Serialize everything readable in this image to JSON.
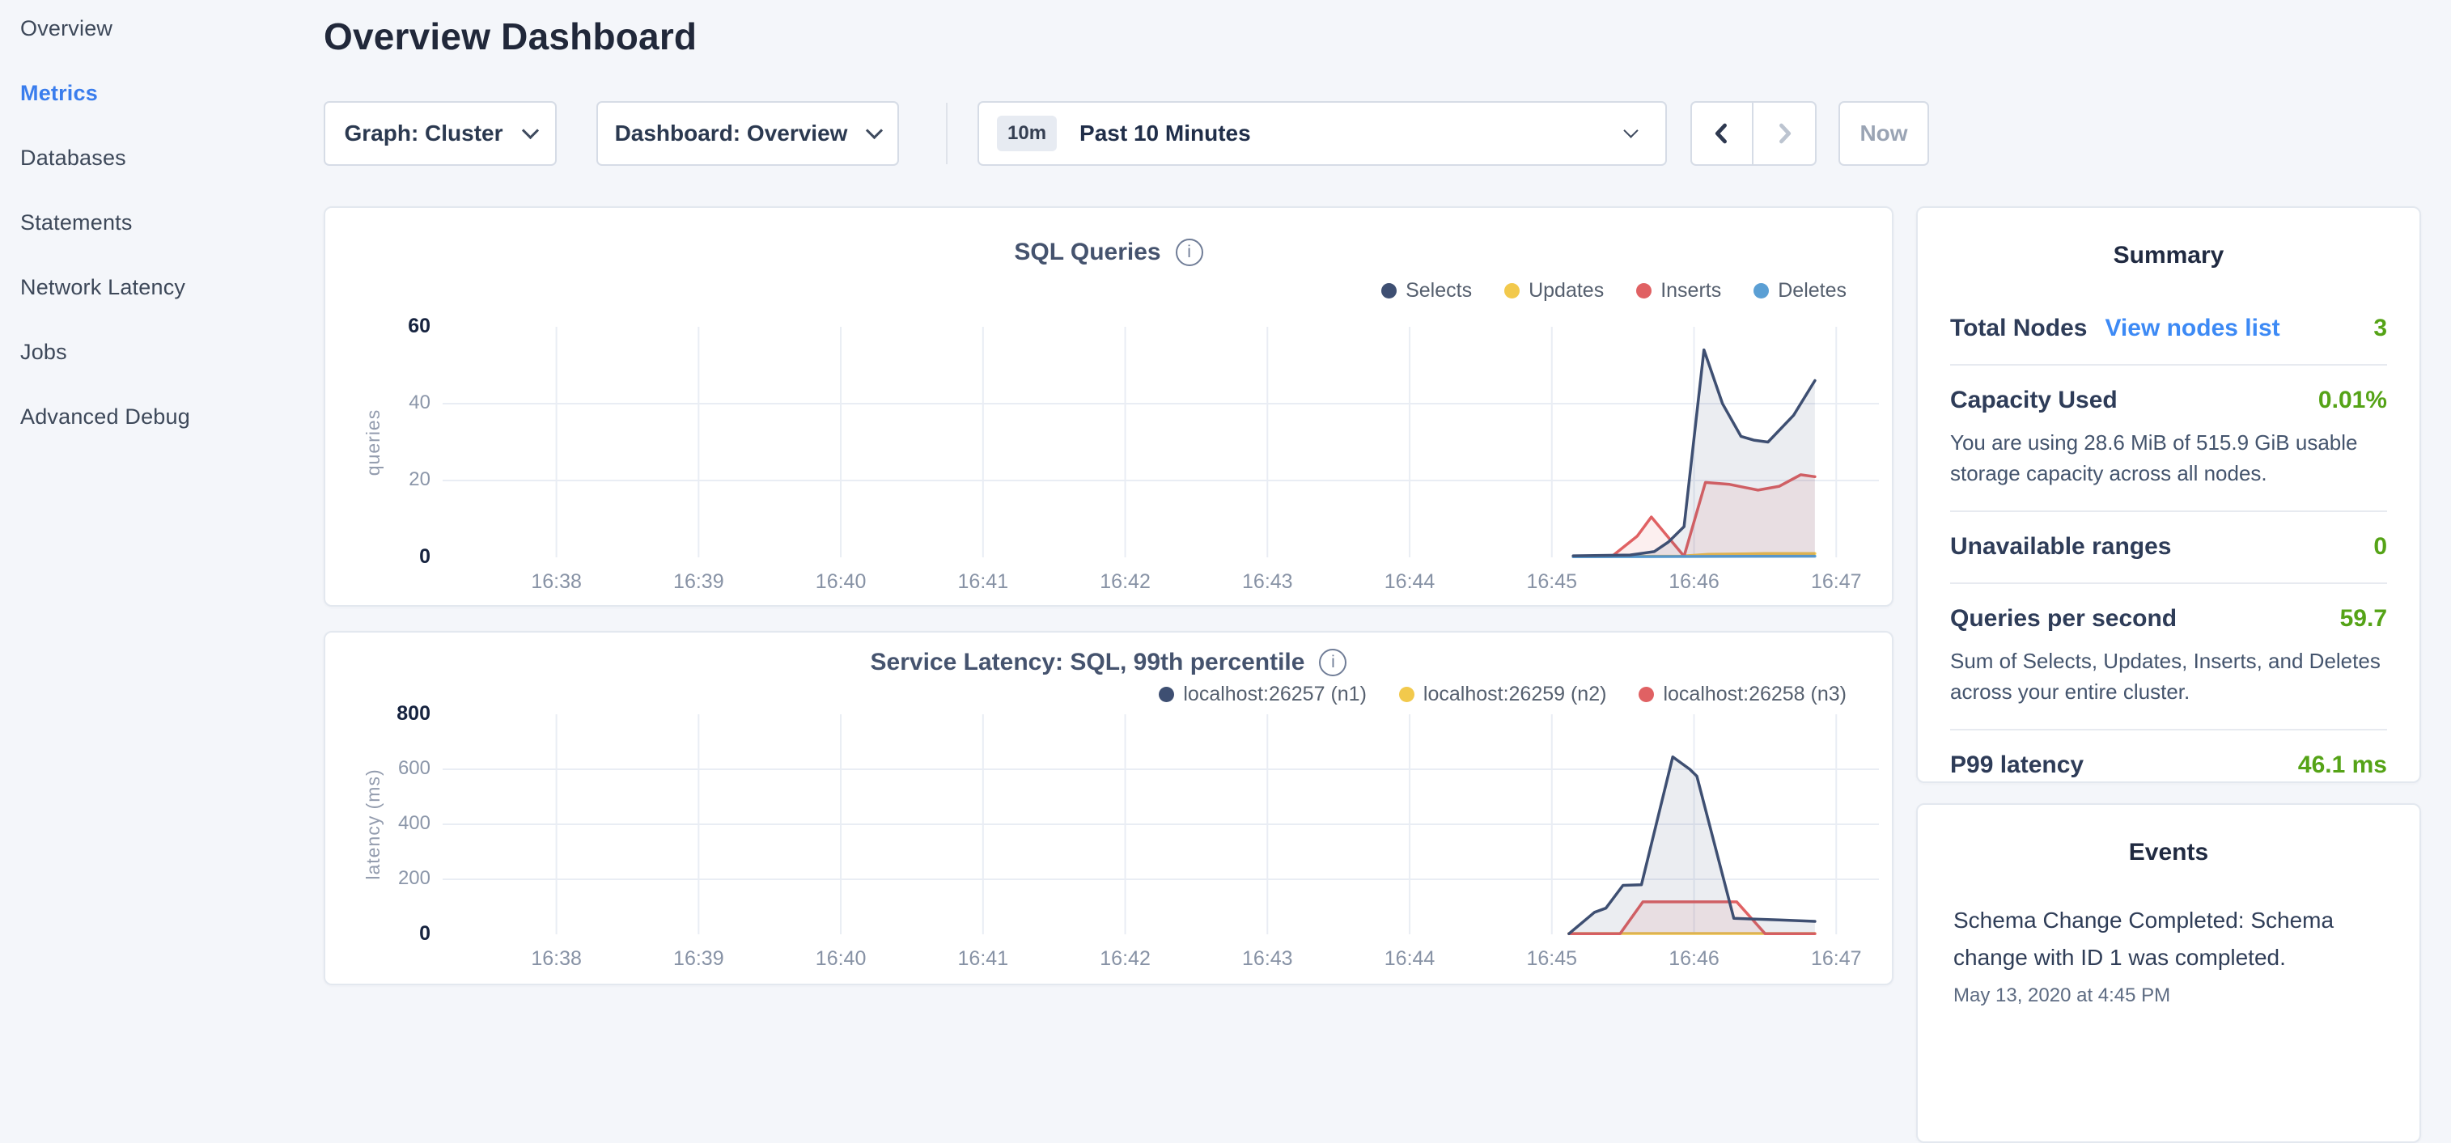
{
  "sidebar": {
    "items": [
      {
        "label": "Overview",
        "active": false
      },
      {
        "label": "Metrics",
        "active": true
      },
      {
        "label": "Databases",
        "active": false
      },
      {
        "label": "Statements",
        "active": false
      },
      {
        "label": "Network Latency",
        "active": false
      },
      {
        "label": "Jobs",
        "active": false
      },
      {
        "label": "Advanced Debug",
        "active": false
      }
    ]
  },
  "header": {
    "title": "Overview Dashboard"
  },
  "controls": {
    "graph_dropdown": "Graph: Cluster",
    "dashboard_dropdown": "Dashboard: Overview",
    "time_badge": "10m",
    "time_label": "Past 10 Minutes",
    "now_label": "Now"
  },
  "summary": {
    "title": "Summary",
    "rows": [
      {
        "label": "Total Nodes",
        "link": "View nodes list",
        "value": "3"
      },
      {
        "label": "Capacity Used",
        "value": "0.01%",
        "description": "You are using 28.6 MiB of 515.9 GiB usable storage capacity across all nodes."
      },
      {
        "label": "Unavailable ranges",
        "value": "0"
      },
      {
        "label": "Queries per second",
        "value": "59.7",
        "description": "Sum of Selects, Updates, Inserts, and Deletes across your entire cluster."
      },
      {
        "label": "P99 latency",
        "value": "46.1 ms"
      }
    ]
  },
  "events": {
    "title": "Events",
    "items": [
      {
        "text": "Schema Change Completed: Schema change with ID 1 was completed.",
        "timestamp": "May 13, 2020 at 4:45 PM"
      }
    ]
  },
  "colors": {
    "accent_blue": "#3a7ded",
    "link_blue": "#3d8af5",
    "value_green": "#55a317",
    "series_navy": "#3e4f72",
    "series_yellow": "#f2c94c",
    "series_red": "#e06163",
    "series_blue": "#5b9fd4",
    "grid": "#e9edf4"
  },
  "chart_data": [
    {
      "type": "line",
      "title": "SQL Queries",
      "ylabel": "queries",
      "ylim": [
        0,
        60
      ],
      "y_ticks": [
        0,
        20,
        40,
        60
      ],
      "x_domain_minutes": [
        37.2,
        47.3
      ],
      "x_ticks": [
        {
          "minute": 38,
          "label": "16:38"
        },
        {
          "minute": 39,
          "label": "16:39"
        },
        {
          "minute": 40,
          "label": "16:40"
        },
        {
          "minute": 41,
          "label": "16:41"
        },
        {
          "minute": 42,
          "label": "16:42"
        },
        {
          "minute": 43,
          "label": "16:43"
        },
        {
          "minute": 44,
          "label": "16:44"
        },
        {
          "minute": 45,
          "label": "16:45"
        },
        {
          "minute": 46,
          "label": "16:46"
        },
        {
          "minute": 47,
          "label": "16:47"
        }
      ],
      "grid": true,
      "legend_position": "top-right",
      "series": [
        {
          "name": "Selects",
          "color": "#3e4f72",
          "fill": "rgba(62,79,114,0.10)",
          "points": [
            [
              45.15,
              0.4
            ],
            [
              45.55,
              0.6
            ],
            [
              45.72,
              1.5
            ],
            [
              45.82,
              4
            ],
            [
              45.93,
              8
            ],
            [
              46.07,
              54
            ],
            [
              46.2,
              40
            ],
            [
              46.33,
              31.5
            ],
            [
              46.42,
              30.5
            ],
            [
              46.52,
              30
            ],
            [
              46.7,
              37
            ],
            [
              46.85,
              46
            ]
          ]
        },
        {
          "name": "Updates",
          "color": "#f2c94c",
          "fill": null,
          "points": [
            [
              45.15,
              0.3
            ],
            [
              45.9,
              0.3
            ],
            [
              46.1,
              0.8
            ],
            [
              46.5,
              1
            ],
            [
              46.85,
              1
            ]
          ]
        },
        {
          "name": "Inserts",
          "color": "#e06163",
          "fill": "rgba(224,97,99,0.10)",
          "points": [
            [
              45.15,
              0.2
            ],
            [
              45.42,
              0.2
            ],
            [
              45.6,
              5.5
            ],
            [
              45.7,
              10.5
            ],
            [
              45.93,
              0.3
            ],
            [
              46.08,
              19.5
            ],
            [
              46.25,
              19
            ],
            [
              46.45,
              17.5
            ],
            [
              46.6,
              18.5
            ],
            [
              46.75,
              21.5
            ],
            [
              46.85,
              21
            ]
          ]
        },
        {
          "name": "Deletes",
          "color": "#5b9fd4",
          "fill": null,
          "points": [
            [
              45.15,
              0.15
            ],
            [
              46.85,
              0.3
            ]
          ]
        }
      ]
    },
    {
      "type": "line",
      "title": "Service Latency: SQL, 99th percentile",
      "ylabel": "latency (ms)",
      "ylim": [
        0,
        800
      ],
      "y_ticks": [
        0,
        200,
        400,
        600,
        800
      ],
      "x_domain_minutes": [
        37.2,
        47.3
      ],
      "x_ticks": [
        {
          "minute": 38,
          "label": "16:38"
        },
        {
          "minute": 39,
          "label": "16:39"
        },
        {
          "minute": 40,
          "label": "16:40"
        },
        {
          "minute": 41,
          "label": "16:41"
        },
        {
          "minute": 42,
          "label": "16:42"
        },
        {
          "minute": 43,
          "label": "16:43"
        },
        {
          "minute": 44,
          "label": "16:44"
        },
        {
          "minute": 45,
          "label": "16:45"
        },
        {
          "minute": 46,
          "label": "16:46"
        },
        {
          "minute": 47,
          "label": "16:47"
        }
      ],
      "grid": true,
      "legend_position": "top-right",
      "series": [
        {
          "name": "localhost:26257 (n1)",
          "color": "#3e4f72",
          "fill": "rgba(62,79,114,0.10)",
          "points": [
            [
              45.12,
              2
            ],
            [
              45.3,
              80
            ],
            [
              45.38,
              95
            ],
            [
              45.5,
              178
            ],
            [
              45.63,
              180
            ],
            [
              45.85,
              645
            ],
            [
              45.97,
              600
            ],
            [
              46.02,
              575
            ],
            [
              46.28,
              58
            ],
            [
              46.6,
              52
            ],
            [
              46.85,
              47
            ]
          ]
        },
        {
          "name": "localhost:26259 (n2)",
          "color": "#f2c94c",
          "fill": null,
          "points": [
            [
              45.12,
              3
            ],
            [
              46.85,
              3
            ]
          ]
        },
        {
          "name": "localhost:26258 (n3)",
          "color": "#e06163",
          "fill": "rgba(224,97,99,0.10)",
          "points": [
            [
              45.12,
              2
            ],
            [
              45.48,
              2
            ],
            [
              45.64,
              118
            ],
            [
              46.3,
              118
            ],
            [
              46.5,
              2
            ],
            [
              46.85,
              2
            ]
          ]
        }
      ]
    }
  ]
}
